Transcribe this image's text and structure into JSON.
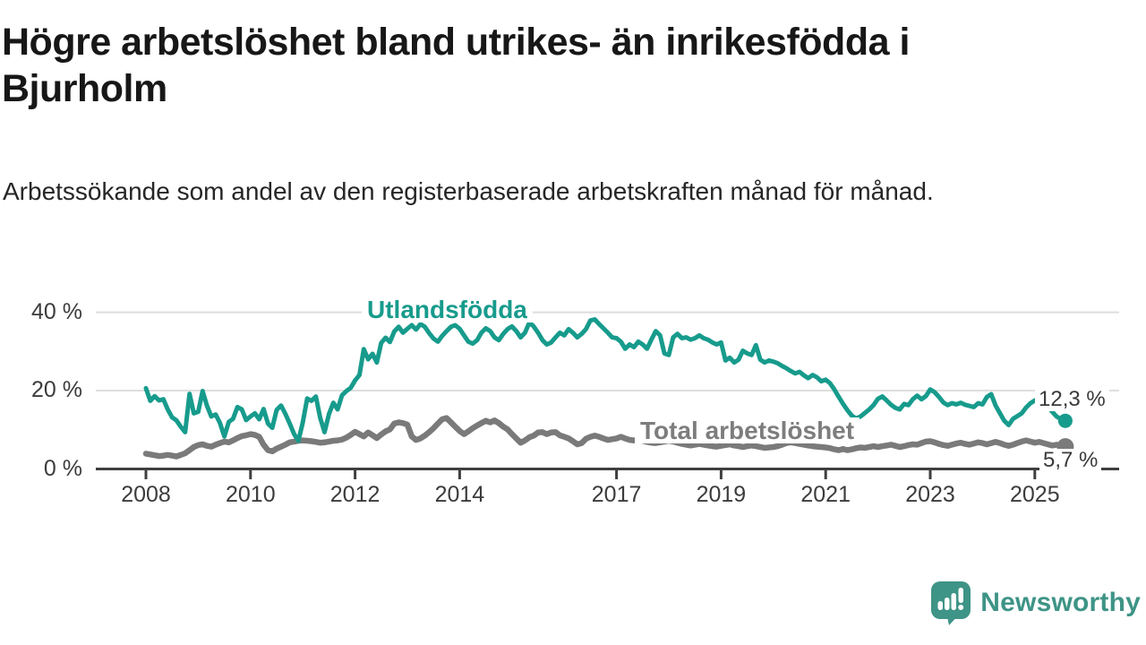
{
  "header": {
    "title": "Högre arbetslöshet bland utrikes- än inrikesfödda i Bjurholm",
    "subtitle": "Arbetssökande som andel av den registerbaserade arbetskraften månad för månad."
  },
  "footer": {
    "brand": "Newsworthy",
    "brand_color": "#3e9486"
  },
  "chart_data": {
    "type": "line",
    "title": "Högre arbetslöshet bland utrikes- än inrikesfödda i Bjurholm",
    "subtitle": "Arbetssökande som andel av den registerbaserade arbetskraften månad för månad.",
    "unit": "%",
    "x_start": 2008.0,
    "x_step_months": 1,
    "x_range": [
      2008.0,
      2025.58
    ],
    "ylim": [
      0,
      42
    ],
    "grid": "horizontal",
    "yticks": [
      40,
      20,
      0
    ],
    "ytick_labels": [
      "40 %",
      "20 %",
      "0 %"
    ],
    "xticks": [
      2008,
      2010,
      2012,
      2014,
      2017,
      2019,
      2021,
      2023,
      2025
    ],
    "axis_color": "#3f3f3f",
    "grid_color": "#dedede",
    "series": [
      {
        "id": "utlandsfodda",
        "name": "Utlandsfödda",
        "color": "#179b8c",
        "end_label": "12,3 %",
        "end_value": 12.3,
        "values": [
          20.6,
          17.4,
          18.6,
          17.5,
          17.8,
          15.2,
          13.2,
          12.4,
          10.8,
          9.4,
          19.2,
          14.2,
          14.6,
          19.9,
          16.2,
          13.4,
          13.9,
          11.7,
          8.3,
          12.0,
          12.8,
          15.8,
          15.2,
          12.5,
          13.4,
          14.2,
          12.7,
          15.3,
          11.6,
          10.5,
          15.1,
          16.2,
          14.1,
          11.6,
          8.9,
          7.2,
          11.9,
          18.0,
          17.4,
          18.5,
          13.0,
          9.4,
          14.0,
          16.9,
          15.2,
          18.8,
          19.9,
          20.7,
          22.6,
          24.0,
          30.6,
          28.0,
          29.4,
          27.2,
          32.2,
          33.5,
          32.4,
          35.1,
          36.3,
          34.8,
          35.8,
          36.7,
          35.6,
          37.0,
          36.3,
          34.7,
          33.3,
          32.5,
          34.0,
          35.2,
          36.3,
          36.7,
          35.8,
          34.1,
          32.5,
          32.0,
          32.9,
          34.8,
          35.9,
          35.2,
          33.6,
          32.9,
          34.5,
          35.7,
          36.4,
          35.2,
          33.6,
          34.8,
          37.4,
          36.4,
          34.8,
          32.9,
          31.8,
          32.3,
          33.6,
          34.8,
          34.1,
          35.7,
          34.8,
          33.6,
          34.5,
          35.7,
          37.9,
          38.2,
          37.0,
          35.9,
          34.8,
          33.6,
          33.4,
          32.5,
          30.7,
          31.8,
          31.1,
          32.5,
          31.8,
          30.7,
          33.0,
          35.2,
          34.1,
          29.5,
          29.1,
          33.6,
          34.5,
          33.4,
          33.6,
          33.0,
          33.4,
          34.1,
          33.4,
          33.0,
          32.3,
          31.8,
          32.3,
          27.7,
          28.4,
          27.2,
          27.9,
          30.2,
          29.5,
          29.1,
          31.6,
          27.9,
          27.2,
          27.7,
          27.4,
          27.0,
          26.3,
          25.7,
          25.0,
          24.4,
          24.8,
          23.9,
          23.2,
          24.0,
          23.4,
          22.4,
          22.8,
          21.9,
          20.3,
          18.4,
          16.6,
          15.0,
          13.6,
          12.9,
          13.4,
          14.3,
          15.2,
          16.3,
          17.9,
          18.5,
          17.5,
          16.4,
          15.6,
          15.2,
          16.6,
          16.3,
          17.8,
          18.7,
          17.8,
          18.6,
          20.3,
          19.6,
          18.4,
          17.0,
          16.3,
          16.8,
          16.5,
          16.9,
          16.4,
          16.1,
          15.8,
          16.8,
          16.5,
          18.4,
          19.1,
          16.2,
          14.2,
          12.3,
          11.2,
          12.8,
          13.5,
          14.2,
          15.7,
          16.8,
          17.5,
          16.9,
          17.4,
          16.0,
          14.6,
          13.4,
          12.7,
          12.3
        ]
      },
      {
        "id": "total-arbetsloshet",
        "name": "Total arbetslöshet",
        "color": "#7a7a7a",
        "end_label": "5,7 %",
        "end_value": 5.7,
        "values": [
          3.9,
          3.7,
          3.5,
          3.3,
          3.4,
          3.6,
          3.4,
          3.2,
          3.6,
          4.0,
          4.8,
          5.6,
          6.1,
          6.3,
          5.9,
          5.7,
          6.2,
          6.6,
          7.0,
          6.8,
          7.3,
          7.9,
          8.4,
          8.6,
          8.9,
          8.7,
          8.2,
          6.2,
          4.8,
          4.5,
          5.2,
          5.7,
          6.2,
          6.8,
          7.0,
          7.2,
          7.3,
          7.2,
          7.1,
          6.9,
          6.7,
          6.8,
          7.0,
          7.2,
          7.3,
          7.5,
          8.0,
          8.7,
          9.5,
          8.9,
          8.3,
          9.3,
          8.6,
          7.9,
          8.8,
          9.6,
          10.1,
          11.6,
          11.9,
          11.7,
          11.3,
          8.3,
          7.4,
          7.8,
          8.5,
          9.4,
          10.4,
          11.6,
          12.7,
          13.0,
          11.9,
          10.8,
          9.7,
          8.9,
          9.6,
          10.4,
          11.1,
          11.7,
          12.3,
          11.9,
          12.4,
          11.7,
          10.8,
          10.1,
          8.9,
          7.8,
          6.7,
          7.3,
          8.1,
          8.5,
          9.3,
          9.4,
          8.9,
          9.3,
          9.4,
          8.6,
          8.2,
          7.8,
          7.1,
          6.3,
          6.6,
          7.7,
          8.2,
          8.5,
          8.2,
          7.8,
          7.4,
          7.6,
          7.8,
          8.2,
          7.8,
          7.4,
          7.3,
          7.4,
          7.2,
          6.9,
          6.7,
          6.6,
          6.8,
          7.0,
          7.2,
          7.0,
          6.7,
          6.4,
          6.2,
          6.0,
          6.2,
          6.4,
          6.2,
          6.0,
          5.8,
          5.7,
          5.9,
          6.1,
          6.3,
          6.0,
          5.8,
          5.6,
          5.8,
          6.0,
          5.8,
          5.6,
          5.4,
          5.5,
          5.6,
          5.8,
          6.2,
          6.6,
          6.8,
          6.6,
          6.4,
          6.2,
          6.0,
          5.8,
          5.7,
          5.6,
          5.5,
          5.3,
          5.0,
          4.8,
          5.1,
          4.8,
          5.0,
          5.3,
          5.5,
          5.4,
          5.6,
          5.8,
          5.6,
          5.8,
          6.0,
          6.2,
          5.9,
          5.6,
          5.8,
          6.1,
          6.3,
          6.2,
          6.6,
          7.0,
          7.1,
          6.8,
          6.4,
          6.1,
          5.9,
          6.2,
          6.5,
          6.7,
          6.4,
          6.2,
          6.5,
          6.8,
          6.6,
          6.3,
          6.6,
          6.9,
          6.6,
          6.2,
          5.9,
          6.2,
          6.6,
          7.0,
          7.3,
          7.0,
          6.7,
          6.9,
          6.6,
          6.3,
          6.0,
          6.2,
          5.9,
          5.7
        ]
      }
    ]
  }
}
